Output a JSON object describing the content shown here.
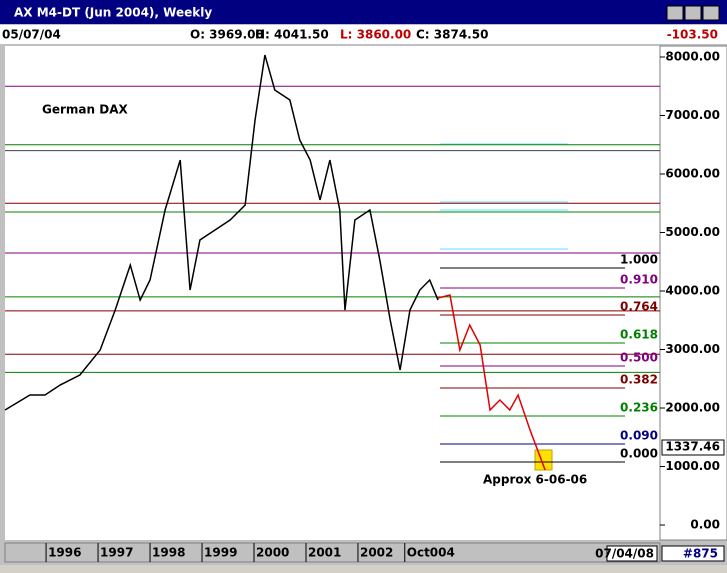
{
  "window": {
    "title": "AX M4-DT (Jun 2004), Weekly",
    "date": "05/07/04",
    "open": "O: 3969.00",
    "high": "H: 4041.50",
    "low": "L: 3860.00",
    "close": "C: 3874.50",
    "change": "-103.50",
    "price_box": "1337.46",
    "bottom_date": "07/04/08",
    "bottom_id": "#875"
  },
  "chart_data": {
    "type": "line",
    "title": "German DAX",
    "annotation": "Approx 6-06-06",
    "xlim": [
      1995.21,
      2007.81
    ],
    "ylim": [
      -256,
      8154
    ],
    "xticks": [
      1996,
      1997,
      1998,
      1999,
      2000,
      2001,
      2002,
      {
        "value": 2002.9,
        "label": "Oct004"
      }
    ],
    "yticks": [
      {
        "value": 0,
        "label": "0.00"
      },
      {
        "value": 1000,
        "label": "1000.00"
      },
      {
        "value": 2000,
        "label": "2000.00"
      },
      {
        "value": 3000,
        "label": "3000.00"
      },
      {
        "value": 4000,
        "label": "4000.00"
      },
      {
        "value": 5000,
        "label": "5000.00"
      },
      {
        "value": 6000,
        "label": "6000.00"
      },
      {
        "value": 7000,
        "label": "7000.00"
      },
      {
        "value": 8000,
        "label": "8000.00"
      }
    ],
    "series": [
      {
        "color": "#000000",
        "x": [
          1995.21,
          1995.69,
          1995.98,
          1996.27,
          1996.65,
          1997.04,
          1997.33,
          1997.62,
          1997.81,
          1998.0,
          1998.29,
          1998.58,
          1998.77,
          1998.96,
          1999.25,
          1999.54,
          1999.83,
          2000.02,
          2000.21,
          2000.4,
          2000.69,
          2000.88,
          2001.08,
          2001.27,
          2001.46,
          2001.65,
          2001.75,
          2001.94,
          2002.23,
          2002.42,
          2002.62,
          2002.81,
          2003.0,
          2003.19,
          2003.38,
          2003.54
        ],
        "values": [
          1966,
          2222,
          2222,
          2393,
          2564,
          2991,
          3675,
          4444,
          3846,
          4188,
          5385,
          6239,
          4017,
          4872,
          5043,
          5214,
          5470,
          6923,
          8034,
          7436,
          7265,
          6581,
          6239,
          5556,
          6239,
          5385,
          3675,
          5214,
          5385,
          4530,
          3504,
          2650,
          3675,
          4017,
          4188,
          3846
        ]
      },
      {
        "color": "#e00000",
        "x": [
          2003.54,
          2003.77,
          2003.96,
          2004.15,
          2004.35,
          2004.54,
          2004.73,
          2004.92,
          2005.08,
          2005.31,
          2005.6
        ],
        "values": [
          3880,
          3932,
          2991,
          3419,
          3077,
          1966,
          2137,
          1966,
          2222,
          1624,
          940
        ]
      }
    ],
    "levels": [
      {
        "value": 7500,
        "color": "#800080"
      },
      {
        "value": 6500,
        "color": "#008000"
      },
      {
        "value": 6400,
        "color": "#404040"
      },
      {
        "value": 5500,
        "color": "#800000"
      },
      {
        "value": 5350,
        "color": "#008000"
      },
      {
        "value": 4650,
        "color": "#800080"
      },
      {
        "value": 3900,
        "color": "#008000"
      },
      {
        "value": 3660,
        "color": "#800000"
      },
      {
        "value": 2920,
        "color": "#800000"
      },
      {
        "value": 2610,
        "color": "#008000"
      }
    ],
    "fib": [
      {
        "label": "1.000",
        "value": 4393,
        "color": "#000000"
      },
      {
        "label": "0.910",
        "value": 4051,
        "color": "#800080"
      },
      {
        "label": "0.764",
        "value": 3590,
        "color": "#800000"
      },
      {
        "label": "0.618",
        "value": 3111,
        "color": "#008000"
      },
      {
        "label": "0.500",
        "value": 2718,
        "color": "#800080"
      },
      {
        "label": "0.382",
        "value": 2342,
        "color": "#800000"
      },
      {
        "label": "0.236",
        "value": 1863,
        "color": "#008000"
      },
      {
        "label": "0.090",
        "value": 1385,
        "color": "#000080"
      },
      {
        "label": "0.000",
        "value": 1077,
        "color": "#000000"
      }
    ]
  }
}
